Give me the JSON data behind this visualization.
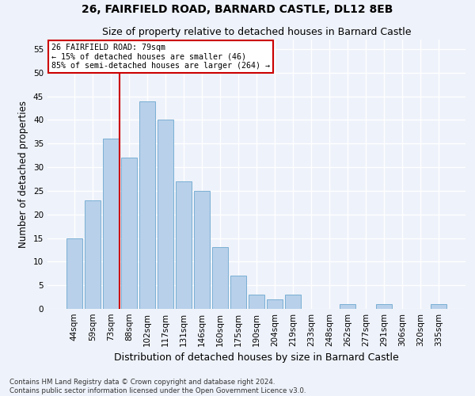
{
  "title": "26, FAIRFIELD ROAD, BARNARD CASTLE, DL12 8EB",
  "subtitle": "Size of property relative to detached houses in Barnard Castle",
  "xlabel": "Distribution of detached houses by size in Barnard Castle",
  "ylabel": "Number of detached properties",
  "footer_line1": "Contains HM Land Registry data © Crown copyright and database right 2024.",
  "footer_line2": "Contains public sector information licensed under the Open Government Licence v3.0.",
  "categories": [
    "44sqm",
    "59sqm",
    "73sqm",
    "88sqm",
    "102sqm",
    "117sqm",
    "131sqm",
    "146sqm",
    "160sqm",
    "175sqm",
    "190sqm",
    "204sqm",
    "219sqm",
    "233sqm",
    "248sqm",
    "262sqm",
    "277sqm",
    "291sqm",
    "306sqm",
    "320sqm",
    "335sqm"
  ],
  "values": [
    15,
    23,
    36,
    32,
    44,
    40,
    27,
    25,
    13,
    7,
    3,
    2,
    3,
    0,
    0,
    1,
    0,
    1,
    0,
    0,
    1
  ],
  "bar_color": "#b8d0ea",
  "bar_edge_color": "#7aafd4",
  "background_color": "#eef2fa",
  "grid_color": "#ffffff",
  "annotation_text": "26 FAIRFIELD ROAD: 79sqm\n← 15% of detached houses are smaller (46)\n85% of semi-detached houses are larger (264) →",
  "vline_x_index": 2.5,
  "vline_color": "#cc0000",
  "annotation_box_color": "#ffffff",
  "annotation_box_edge": "#cc0000",
  "ylim": [
    0,
    57
  ],
  "yticks": [
    0,
    5,
    10,
    15,
    20,
    25,
    30,
    35,
    40,
    45,
    50,
    55
  ],
  "title_fontsize": 10,
  "subtitle_fontsize": 9,
  "xlabel_fontsize": 9,
  "ylabel_fontsize": 8.5,
  "tick_fontsize": 7.5,
  "footer_fontsize": 6.2
}
